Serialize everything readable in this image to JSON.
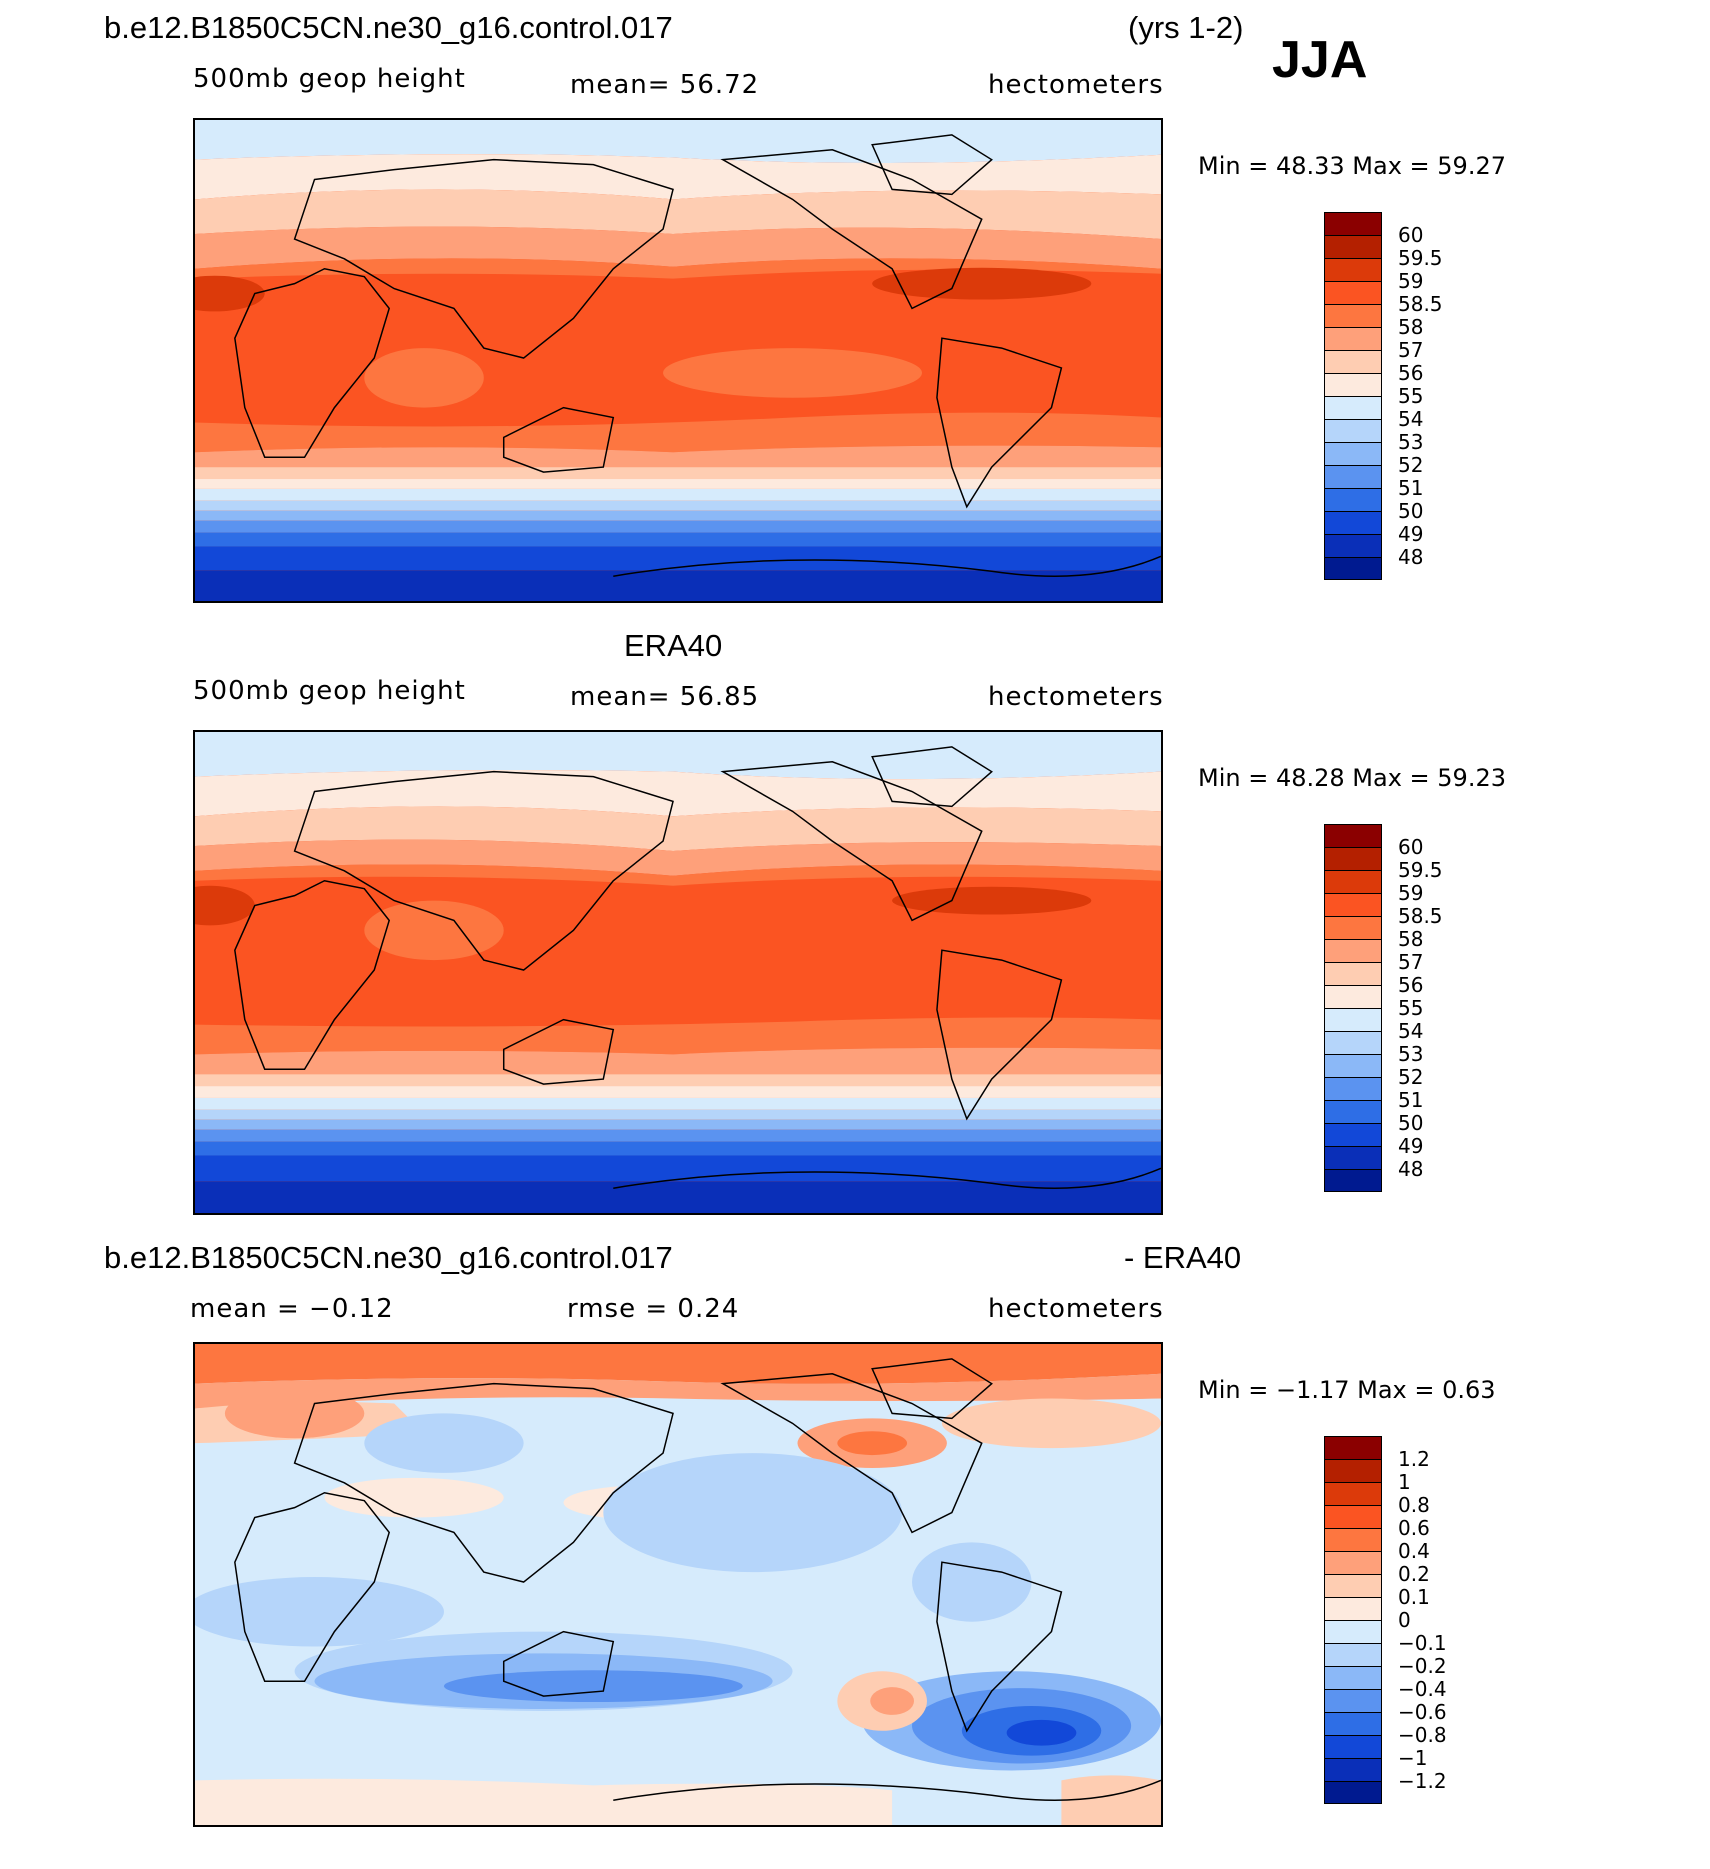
{
  "header": {
    "case_name": "b.e12.B1850C5CN.ne30_g16.control.017",
    "years": "(yrs 1-2)",
    "season": "JJA"
  },
  "panels": [
    {
      "title": "",
      "variable": "500mb geop height",
      "stat": "mean=  56.72",
      "units": "hectometers",
      "minmax": "Min =   48.33  Max =   59.27",
      "kind": "model"
    },
    {
      "title": "ERA40",
      "variable": "500mb geop height",
      "stat": "mean=  56.85",
      "units": "hectometers",
      "minmax": "Min =   48.28  Max =   59.23",
      "kind": "obs"
    },
    {
      "title_left": "b.e12.B1850C5CN.ne30_g16.control.017",
      "title_right": "- ERA40",
      "variable": "mean =   −0.12",
      "stat": "rmse =    0.24",
      "units": "hectometers",
      "minmax": "Min =   −1.17  Max =    0.63",
      "kind": "diff"
    }
  ],
  "colorbar_height": {
    "labels": [
      "60",
      "59.5",
      "59",
      "58.5",
      "58",
      "57",
      "56",
      "55",
      "54",
      "53",
      "52",
      "51",
      "50",
      "49",
      "48"
    ],
    "colors": [
      "#8b0000",
      "#b42000",
      "#dc3a0a",
      "#fb5422",
      "#fd7640",
      "#fea07a",
      "#fecdb2",
      "#fdeade",
      "#d6ebfc",
      "#b5d5fa",
      "#8bb8f7",
      "#5b93f0",
      "#2e6ee6",
      "#1248d8",
      "#0a2fb8",
      "#001a90"
    ]
  },
  "colorbar_diff": {
    "labels": [
      "1.2",
      "1",
      "0.8",
      "0.6",
      "0.4",
      "0.2",
      "0.1",
      "0",
      "−0.1",
      "−0.2",
      "−0.4",
      "−0.6",
      "−0.8",
      "−1",
      "−1.2"
    ],
    "colors": [
      "#8b0000",
      "#b42000",
      "#dc3a0a",
      "#fb5422",
      "#fd7640",
      "#fea07a",
      "#fecdb2",
      "#fdeade",
      "#d6ebfc",
      "#b5d5fa",
      "#8bb8f7",
      "#5b93f0",
      "#2e6ee6",
      "#1248d8",
      "#0a2fb8",
      "#001a90"
    ]
  }
}
